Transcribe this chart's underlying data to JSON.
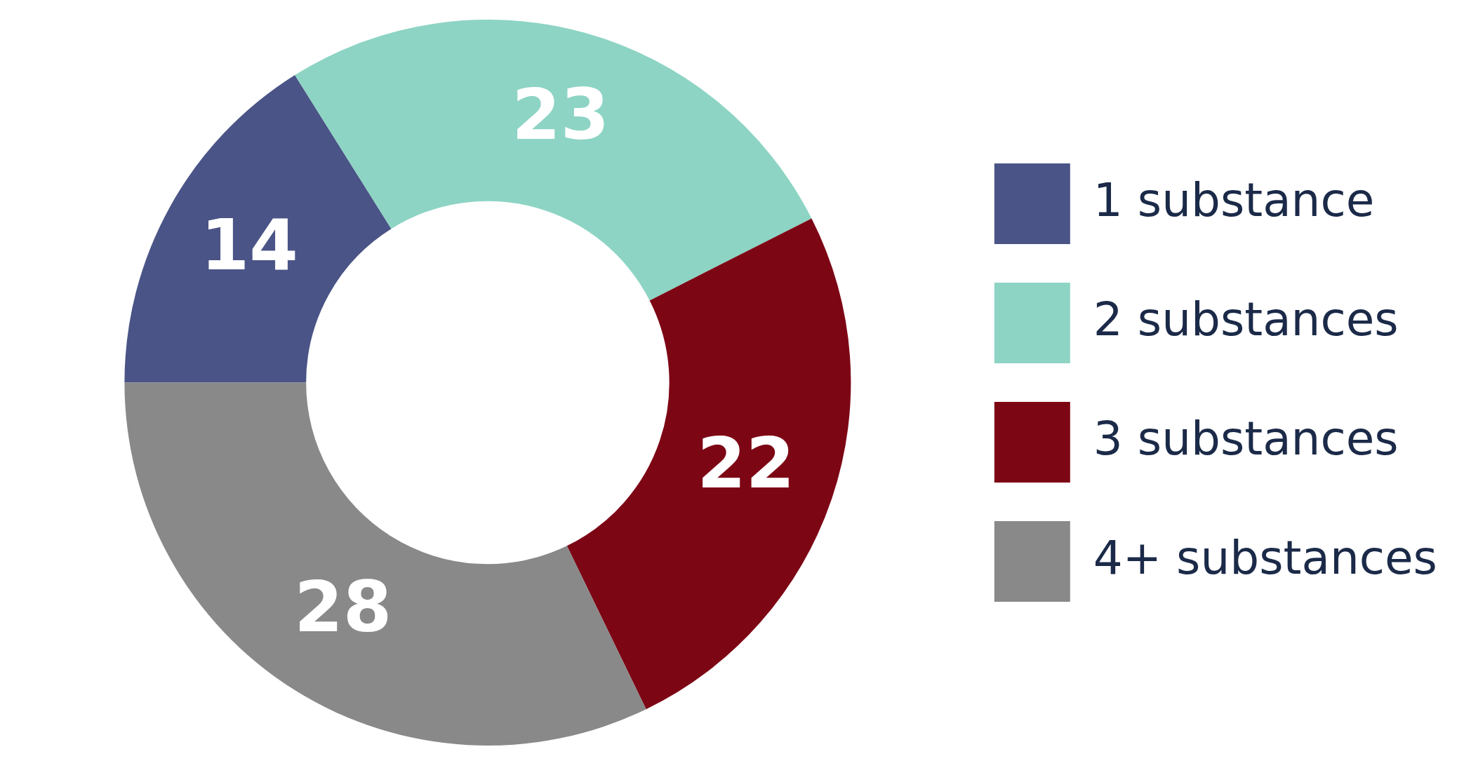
{
  "chart_data": {
    "type": "donut",
    "categories": [
      "1 substance",
      "2 substances",
      "3 substances",
      "4+ substances"
    ],
    "values": [
      14,
      23,
      22,
      28
    ],
    "colors": [
      "#4a5486",
      "#8dd4c4",
      "#7d0615",
      "#898989"
    ],
    "data_labels": true,
    "legend": "right"
  }
}
